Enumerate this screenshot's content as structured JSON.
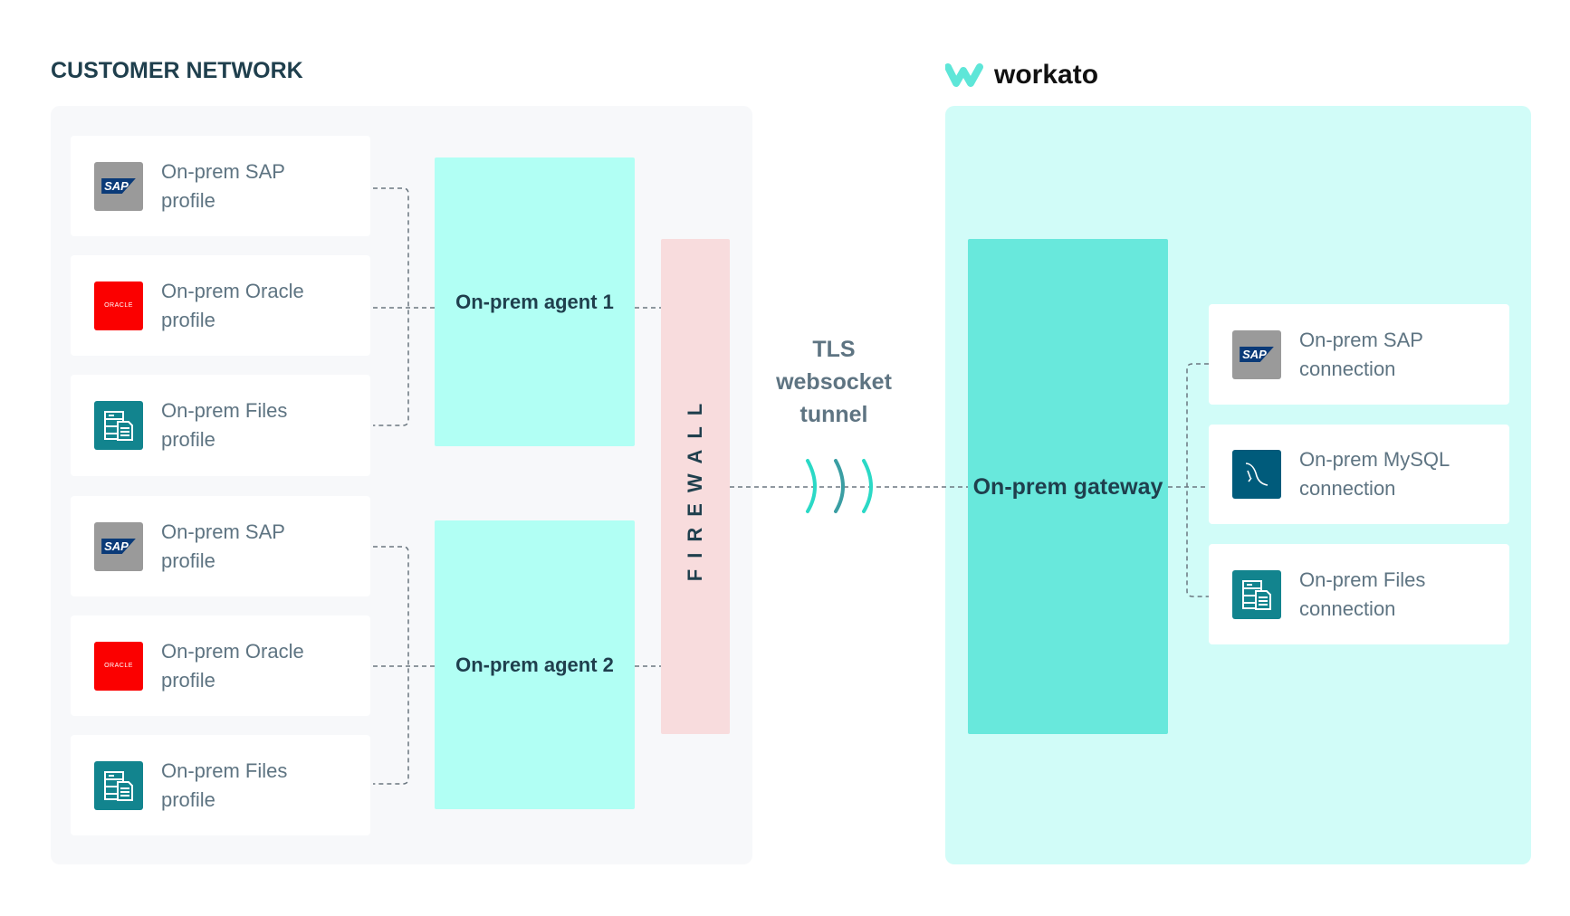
{
  "customer_network": {
    "title": "CUSTOMER NETWORK",
    "profiles": [
      {
        "icon": "sap-icon",
        "icon_text": "SAP",
        "label": "On-prem SAP profile"
      },
      {
        "icon": "oracle-icon",
        "icon_text": "ORACLE",
        "label": "On-prem Oracle profile"
      },
      {
        "icon": "files-icon",
        "label": "On-prem Files profile"
      },
      {
        "icon": "sap-icon",
        "icon_text": "SAP",
        "label": "On-prem SAP profile"
      },
      {
        "icon": "oracle-icon",
        "icon_text": "ORACLE",
        "label": "On-prem Oracle profile"
      },
      {
        "icon": "files-icon",
        "label": "On-prem Files profile"
      }
    ],
    "agents": [
      "On-prem agent 1",
      "On-prem agent 2"
    ],
    "firewall": "FIREWALL"
  },
  "tunnel": {
    "label": "TLS websocket tunnel"
  },
  "workato": {
    "logo_text": "workato",
    "gateway": "On-prem gateway",
    "connections": [
      {
        "icon": "sap-icon",
        "icon_text": "SAP",
        "label": "On-prem SAP connection"
      },
      {
        "icon": "mysql-icon",
        "label": "On-prem MySQL connection"
      },
      {
        "icon": "files-icon",
        "label": "On-prem Files connection"
      }
    ]
  },
  "colors": {
    "agent": "#b1fff4",
    "gateway": "#68e8dc",
    "firewall": "#f8dcdd",
    "workato_panel": "#d1fcf8",
    "customer_panel": "#f7f8fa",
    "wave": "#2bd9c6"
  }
}
